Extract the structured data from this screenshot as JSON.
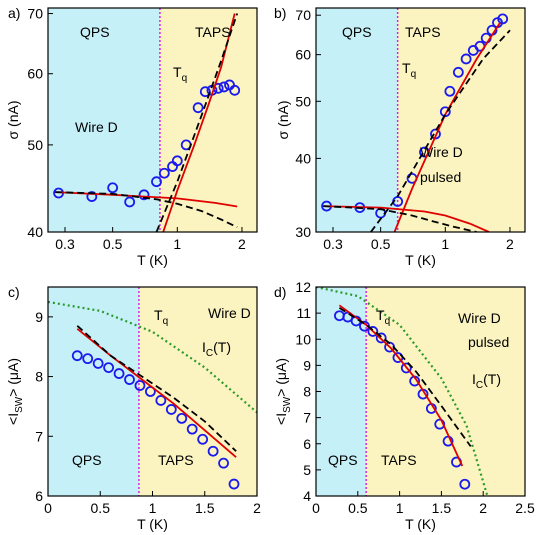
{
  "chart_data": [
    {
      "type": "scatter",
      "panel_label": "a)",
      "xscale": "log",
      "yscale": "log",
      "xlim": [
        0.25,
        2.35
      ],
      "xticks": [
        0.3,
        0.5,
        1,
        2
      ],
      "ylim": [
        40,
        71
      ],
      "yticks": [
        40,
        50,
        60,
        70
      ],
      "xlabel": [
        "T (K)"
      ],
      "ylabel": [
        "σ (nA)"
      ],
      "regions": [
        "QPS",
        "TAPS"
      ],
      "tq_x": 0.83,
      "tq_label": [
        "T",
        "q"
      ],
      "sample": [
        "Wire D"
      ],
      "series": [
        {
          "style": "points",
          "color": "#1a1aee",
          "x": [
            0.28,
            0.4,
            0.5,
            0.6,
            0.7,
            0.8,
            0.87,
            0.95,
            1.0,
            1.1,
            1.25,
            1.35,
            1.45,
            1.55,
            1.65,
            1.75,
            1.85
          ],
          "values": [
            44.2,
            43.8,
            44.8,
            43.2,
            44,
            45.5,
            46.5,
            47.3,
            48,
            50,
            55,
            57.3,
            57.5,
            57.8,
            58,
            58.3,
            57.5
          ]
        },
        {
          "style": "solid",
          "color": "#e00000",
          "x": [
            0.27,
            0.5,
            1,
            1.5,
            1.9
          ],
          "values": [
            44.3,
            44.0,
            43.6,
            43.1,
            42.7
          ]
        },
        {
          "style": "solid",
          "color": "#e00000",
          "x": [
            0.86,
            1.0,
            1.2,
            1.4,
            1.6,
            1.85
          ],
          "values": [
            40,
            44.5,
            50,
            55.5,
            61,
            70
          ]
        },
        {
          "style": "dashed",
          "color": "#000000",
          "x": [
            0.27,
            0.5,
            0.8,
            1.0,
            1.3,
            1.6,
            1.9
          ],
          "values": [
            44.3,
            44.1,
            43.5,
            43,
            42.2,
            41.3,
            40.5
          ]
        },
        {
          "style": "dashed",
          "color": "#000000",
          "x": [
            0.8,
            1,
            1.3,
            1.6,
            1.9
          ],
          "values": [
            40,
            45.5,
            54,
            62,
            70
          ]
        }
      ]
    },
    {
      "type": "scatter",
      "panel_label": "b)",
      "xscale": "log",
      "yscale": "log",
      "xlim": [
        0.25,
        2.35
      ],
      "xticks": [
        0.3,
        0.5,
        1,
        2
      ],
      "ylim": [
        30,
        72
      ],
      "yticks": [
        30,
        40,
        50,
        60,
        70
      ],
      "xlabel": [
        "T (K)"
      ],
      "ylabel": [
        "σ (nA)"
      ],
      "regions": [
        "QPS",
        "TAPS"
      ],
      "tq_x": 0.6,
      "tq_label": [
        "T",
        "q"
      ],
      "sample": [
        "Wire D",
        "pulsed"
      ],
      "series": [
        {
          "style": "points",
          "color": "#1a1aee",
          "x": [
            0.28,
            0.4,
            0.5,
            0.6,
            0.7,
            0.8,
            0.9,
            1.0,
            1.05,
            1.15,
            1.25,
            1.35,
            1.45,
            1.55,
            1.65,
            1.75,
            1.85
          ],
          "values": [
            33.2,
            33,
            32.3,
            33.8,
            37,
            41,
            44,
            48,
            52,
            56,
            59,
            61,
            62,
            64,
            66,
            68,
            69
          ]
        },
        {
          "style": "solid",
          "color": "#e00000",
          "x": [
            0.27,
            0.5,
            0.8,
            1.0,
            1.3,
            1.6
          ],
          "values": [
            33.2,
            33,
            32.5,
            32,
            31,
            30
          ]
        },
        {
          "style": "solid",
          "color": "#e00000",
          "x": [
            0.58,
            0.7,
            1,
            1.4,
            1.8
          ],
          "values": [
            30,
            35.5,
            47.5,
            59,
            68
          ]
        },
        {
          "style": "dashed",
          "color": "#000000",
          "x": [
            0.27,
            0.5,
            0.7,
            0.9,
            1.1,
            1.4
          ],
          "values": [
            33.2,
            32.8,
            32,
            31.2,
            30.6,
            30
          ]
        },
        {
          "style": "dashed",
          "color": "#000000",
          "x": [
            0.45,
            0.6,
            1,
            1.5,
            2
          ],
          "values": [
            30,
            34.5,
            47.5,
            59,
            66
          ]
        }
      ]
    },
    {
      "type": "scatter",
      "panel_label": "c)",
      "xscale": "linear",
      "yscale": "linear",
      "xlim": [
        0,
        2
      ],
      "xticks": [
        0,
        0.5,
        1,
        1.5,
        2
      ],
      "ylim": [
        6,
        9.5
      ],
      "yticks": [
        6,
        7,
        8,
        9
      ],
      "xlabel": [
        "T (K)"
      ],
      "ylabel": [
        "<I",
        "SW",
        "> (μA)"
      ],
      "regions": [
        "QPS",
        "TAPS"
      ],
      "tq_x": 0.87,
      "tq_label": [
        "T",
        "q"
      ],
      "sample": [
        "Wire D"
      ],
      "ic_label": [
        "I",
        "C",
        "(T)"
      ],
      "series": [
        {
          "style": "points",
          "color": "#1a1aee",
          "x": [
            0.28,
            0.38,
            0.48,
            0.58,
            0.68,
            0.78,
            0.88,
            0.98,
            1.08,
            1.18,
            1.28,
            1.38,
            1.48,
            1.58,
            1.68,
            1.78
          ],
          "values": [
            8.35,
            8.3,
            8.22,
            8.15,
            8.05,
            7.95,
            7.85,
            7.75,
            7.6,
            7.45,
            7.3,
            7.12,
            6.95,
            6.75,
            6.55,
            6.2
          ]
        },
        {
          "style": "solid",
          "color": "#e00000",
          "x": [
            0.28,
            0.6,
            0.9,
            1.2,
            1.5,
            1.8
          ],
          "values": [
            8.8,
            8.35,
            7.95,
            7.55,
            7.1,
            6.65
          ]
        },
        {
          "style": "dashed",
          "color": "#000000",
          "x": [
            0.28,
            0.6,
            0.9,
            1.2,
            1.5,
            1.8
          ],
          "values": [
            8.85,
            8.35,
            8.0,
            7.65,
            7.25,
            6.75
          ]
        },
        {
          "style": "dotted",
          "color": "#2a9a2a",
          "x": [
            0,
            0.5,
            1,
            1.5,
            2
          ],
          "values": [
            9.25,
            9.1,
            8.75,
            8.15,
            7.4
          ]
        }
      ]
    },
    {
      "type": "scatter",
      "panel_label": "d)",
      "xscale": "linear",
      "yscale": "linear",
      "xlim": [
        0,
        2.5
      ],
      "xticks": [
        0,
        0.5,
        1,
        1.5,
        2,
        2.5
      ],
      "ylim": [
        4,
        12
      ],
      "yticks": [
        4,
        5,
        6,
        7,
        8,
        9,
        10,
        11,
        12
      ],
      "xlabel": [
        "T (K)"
      ],
      "ylabel": [
        "<I",
        "SW",
        "> (μA)"
      ],
      "regions": [
        "QPS",
        "TAPS"
      ],
      "tq_x": 0.6,
      "tq_label": [
        "T",
        "q"
      ],
      "sample": [
        "Wire D",
        "pulsed"
      ],
      "ic_label": [
        "I",
        "C",
        "(T)"
      ],
      "series": [
        {
          "style": "points",
          "color": "#1a1aee",
          "x": [
            0.28,
            0.38,
            0.48,
            0.58,
            0.68,
            0.78,
            0.88,
            0.98,
            1.08,
            1.18,
            1.28,
            1.38,
            1.48,
            1.58,
            1.68,
            1.78
          ],
          "values": [
            10.9,
            10.85,
            10.7,
            10.5,
            10.3,
            10.05,
            9.7,
            9.3,
            8.9,
            8.4,
            7.9,
            7.35,
            6.75,
            6.1,
            5.3,
            4.45
          ]
        },
        {
          "style": "solid",
          "color": "#e00000",
          "x": [
            0.28,
            0.6,
            0.9,
            1.2,
            1.5,
            1.75
          ],
          "values": [
            11.3,
            10.55,
            9.65,
            8.45,
            6.9,
            5.15
          ]
        },
        {
          "style": "dashed",
          "color": "#000000",
          "x": [
            0.28,
            0.6,
            0.9,
            1.2,
            1.5,
            1.85
          ],
          "values": [
            11.2,
            10.55,
            9.8,
            8.75,
            7.45,
            5.9
          ]
        },
        {
          "style": "dotted",
          "color": "#2a9a2a",
          "x": [
            0,
            0.5,
            1,
            1.5,
            1.8,
            2.05
          ],
          "values": [
            12,
            11.65,
            10.55,
            8.5,
            6.7,
            4.0
          ]
        }
      ]
    }
  ]
}
